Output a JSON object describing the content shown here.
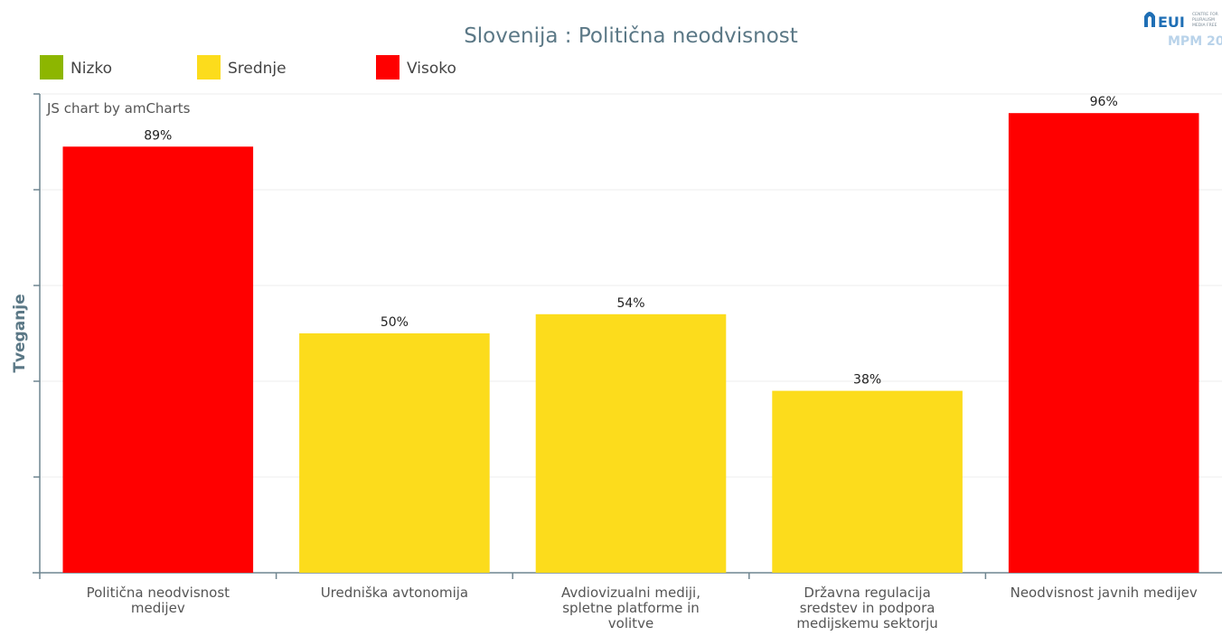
{
  "logo": {
    "mark": "EUI",
    "lines": [
      "CENTRE FOR",
      "PLURALISM",
      "MEDIA FREE"
    ],
    "sub": "MPM 20"
  },
  "chart_data": {
    "type": "bar",
    "title": "Slovenija : Politična neodvisnost",
    "ylabel": "Tveganje",
    "xlabel": "",
    "ylim": [
      0,
      100
    ],
    "credit": "JS chart by amCharts",
    "legend": [
      {
        "name": "Nizko",
        "color": "#8DB600"
      },
      {
        "name": "Srednje",
        "color": "#FCDC1C"
      },
      {
        "name": "Visoko",
        "color": "#FF0000"
      }
    ],
    "categories": [
      "Politična neodvisnost medijev",
      "Uredniška avtonomija",
      "Avdiovizualni mediji, spletne platforme in volitve",
      "Državna regulacija sredstev in podpora medijskemu sektorju",
      "Neodvisnost javnih medijev"
    ],
    "values": [
      89,
      50,
      54,
      38,
      96
    ],
    "value_labels": [
      "89%",
      "50%",
      "54%",
      "38%",
      "96%"
    ],
    "risk_levels": [
      "Visoko",
      "Srednje",
      "Srednje",
      "Srednje",
      "Visoko"
    ],
    "gridlines": true
  }
}
